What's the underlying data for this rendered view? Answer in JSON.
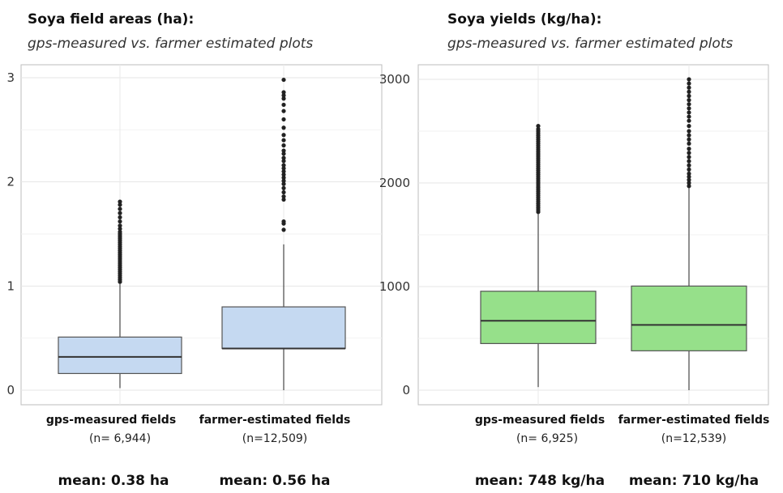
{
  "chart_data": [
    {
      "type": "boxplot",
      "title": "Soya field areas (ha):",
      "subtitle": "gps-measured vs. farmer estimated plots",
      "ylim": [
        0,
        3.1
      ],
      "yticks": [
        0,
        1,
        2,
        3
      ],
      "ytick_labels": [
        "0",
        "1",
        "2",
        "3"
      ],
      "grid": true,
      "fill_color": "#c5d9f1",
      "categories": [
        "gps-measured fields",
        "farmer-estimated fields"
      ],
      "counts": [
        "(n= 6,944)",
        "(n=12,509)"
      ],
      "means": [
        "mean: 0.38 ha",
        "mean: 0.56 ha"
      ],
      "boxes": [
        {
          "q1": 0.16,
          "median": 0.32,
          "q3": 0.51,
          "whisker_low": 0.02,
          "whisker_high": 1.02,
          "outliers": [
            1.04,
            1.06,
            1.08,
            1.1,
            1.12,
            1.14,
            1.16,
            1.18,
            1.2,
            1.22,
            1.24,
            1.26,
            1.28,
            1.3,
            1.32,
            1.34,
            1.36,
            1.38,
            1.4,
            1.42,
            1.44,
            1.46,
            1.48,
            1.5,
            1.52,
            1.55,
            1.58,
            1.62,
            1.66,
            1.7,
            1.74,
            1.78,
            1.81
          ]
        },
        {
          "q1": 0.4,
          "median": 0.4,
          "q3": 0.8,
          "whisker_low": 0.0,
          "whisker_high": 1.4,
          "outliers": [
            1.54,
            1.6,
            1.62,
            1.83,
            1.86,
            1.9,
            1.94,
            1.98,
            2.01,
            2.04,
            2.07,
            2.1,
            2.13,
            2.16,
            2.2,
            2.23,
            2.27,
            2.3,
            2.35,
            2.4,
            2.45,
            2.52,
            2.6,
            2.68,
            2.74,
            2.8,
            2.83,
            2.86,
            2.98
          ]
        }
      ]
    },
    {
      "type": "boxplot",
      "title": "Soya yields (kg/ha):",
      "subtitle": "gps-measured vs. farmer estimated plots",
      "ylim": [
        0,
        3100
      ],
      "yticks": [
        0,
        1000,
        2000,
        3000
      ],
      "ytick_labels": [
        "0",
        "1000",
        "2000",
        "3000"
      ],
      "grid": true,
      "fill_color": "#96e08a",
      "categories": [
        "gps-measured fields",
        "farmer-estimated fields"
      ],
      "counts": [
        "(n= 6,925)",
        "(n=12,539)"
      ],
      "means": [
        "mean: 748 kg/ha",
        "mean: 710 kg/ha"
      ],
      "boxes": [
        {
          "q1": 450,
          "median": 670,
          "q3": 955,
          "whisker_low": 30,
          "whisker_high": 1700,
          "outliers": [
            1720,
            1740,
            1760,
            1780,
            1800,
            1820,
            1840,
            1860,
            1880,
            1900,
            1920,
            1940,
            1960,
            1980,
            2000,
            2020,
            2040,
            2060,
            2080,
            2100,
            2120,
            2140,
            2160,
            2180,
            2200,
            2220,
            2240,
            2260,
            2280,
            2300,
            2320,
            2340,
            2360,
            2380,
            2400,
            2420,
            2440,
            2460,
            2480,
            2500,
            2520,
            2550
          ]
        },
        {
          "q1": 380,
          "median": 630,
          "q3": 1005,
          "whisker_low": 0,
          "whisker_high": 1950,
          "outliers": [
            1970,
            2000,
            2030,
            2060,
            2090,
            2130,
            2170,
            2210,
            2250,
            2290,
            2330,
            2380,
            2420,
            2460,
            2500,
            2550,
            2600,
            2640,
            2680,
            2720,
            2760,
            2800,
            2840,
            2880,
            2920,
            2960,
            3000
          ]
        }
      ]
    }
  ]
}
